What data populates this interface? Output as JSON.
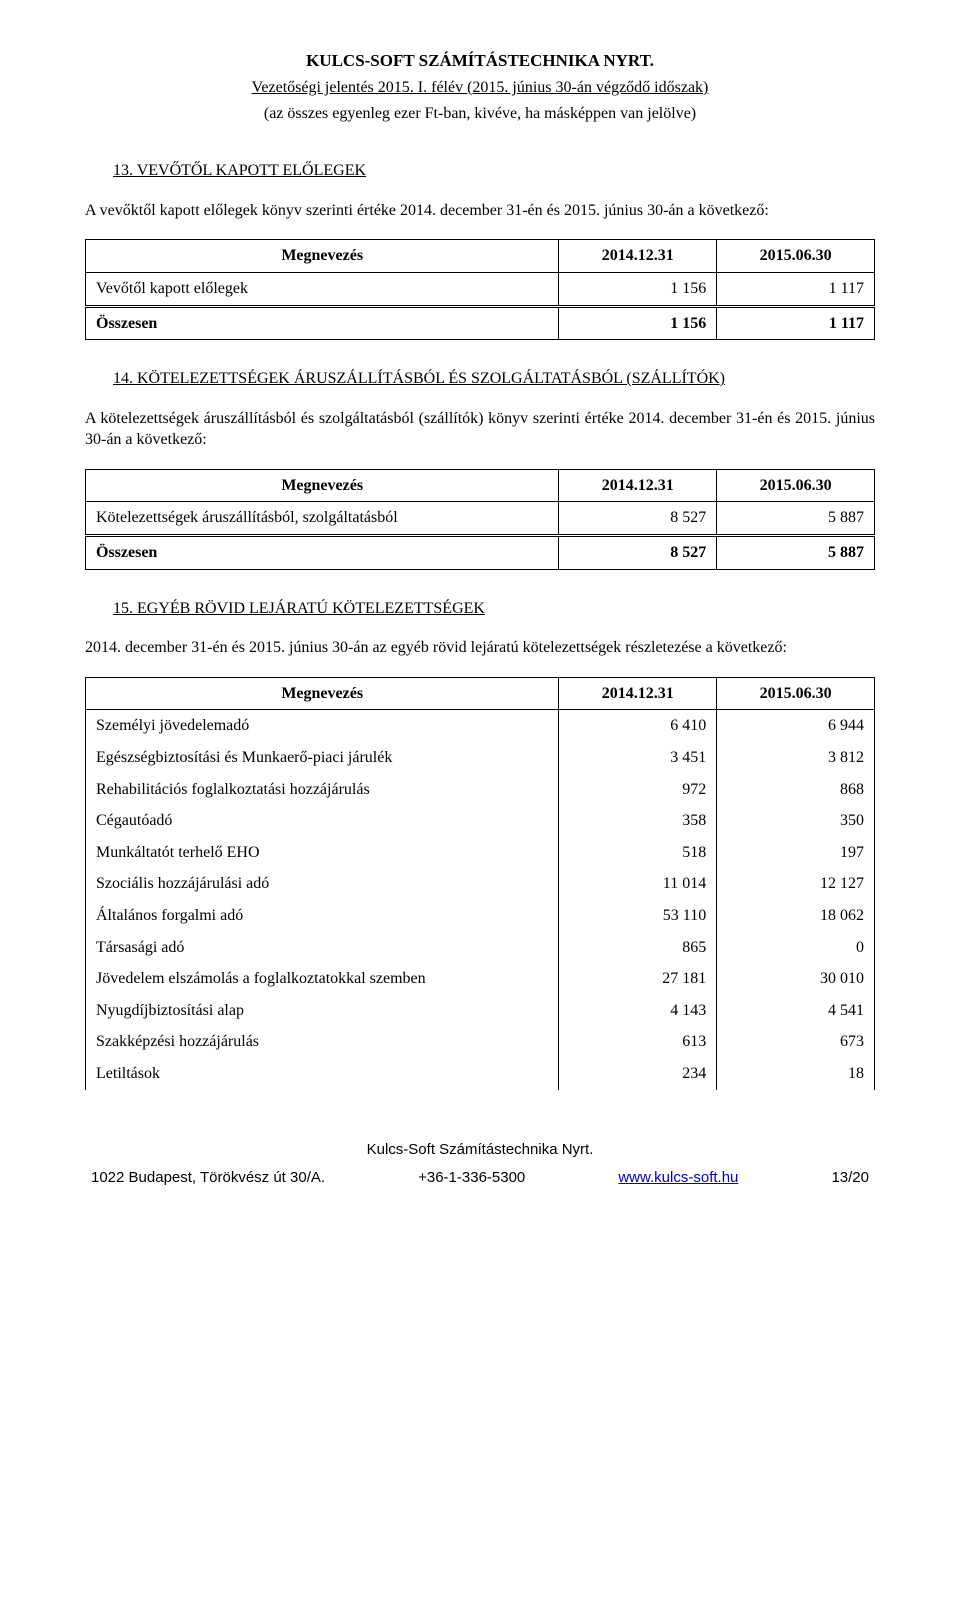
{
  "header": {
    "company": "KULCS-SOFT SZÁMÍTÁSTECHNIKA NYRT.",
    "subtitle": "Vezetőségi jelentés 2015. I. félév (2015. június 30-án végződő időszak)",
    "note": "(az összes egyenleg ezer Ft-ban, kivéve, ha másképpen van jelölve)"
  },
  "sections": {
    "s13": {
      "number": "13.",
      "title": "VEVŐTŐL KAPOTT ELŐLEGEK",
      "para": "A vevőktől kapott előlegek könyv szerinti értéke 2014. december 31-én és 2015. június 30-án a következő:",
      "table": {
        "headers": [
          "Megnevezés",
          "2014.12.31",
          "2015.06.30"
        ],
        "rows": [
          {
            "label": "Vevőtől kapott előlegek",
            "c1": "1 156",
            "c2": "1 117"
          }
        ],
        "total": {
          "label": "Összesen",
          "c1": "1 156",
          "c2": "1 117"
        }
      }
    },
    "s14": {
      "number": "14.",
      "title": "KÖTELEZETTSÉGEK ÁRUSZÁLLÍTÁSBÓL ÉS SZOLGÁLTATÁSBÓL (SZÁLLÍTÓK)",
      "para": "A kötelezettségek áruszállításból és szolgáltatásból (szállítók) könyv szerinti értéke 2014. december 31-én és 2015. június 30-án a következő:",
      "table": {
        "headers": [
          "Megnevezés",
          "2014.12.31",
          "2015.06.30"
        ],
        "rows": [
          {
            "label": "Kötelezettségek áruszállításból, szolgáltatásból",
            "c1": "8 527",
            "c2": "5 887"
          }
        ],
        "total": {
          "label": "Összesen",
          "c1": "8 527",
          "c2": "5 887"
        }
      }
    },
    "s15": {
      "number": "15.",
      "title": "EGYÉB RÖVID LEJÁRATÚ KÖTELEZETTSÉGEK",
      "para": "2014. december 31-én és 2015. június 30-án az egyéb rövid lejáratú kötelezettségek részletezése a következő:",
      "table": {
        "headers": [
          "Megnevezés",
          "2014.12.31",
          "2015.06.30"
        ],
        "rows": [
          {
            "label": "Személyi jövedelemadó",
            "c1": "6 410",
            "c2": "6 944"
          },
          {
            "label": "Egészségbiztosítási és Munkaerő-piaci járulék",
            "c1": "3 451",
            "c2": "3 812"
          },
          {
            "label": "Rehabilitációs foglalkoztatási hozzájárulás",
            "c1": "972",
            "c2": "868"
          },
          {
            "label": "Cégautóadó",
            "c1": "358",
            "c2": "350"
          },
          {
            "label": "Munkáltatót terhelő EHO",
            "c1": "518",
            "c2": "197"
          },
          {
            "label": "Szociális hozzájárulási adó",
            "c1": "11 014",
            "c2": "12 127"
          },
          {
            "label": "Általános forgalmi adó",
            "c1": "53 110",
            "c2": "18 062"
          },
          {
            "label": "Társasági adó",
            "c1": "865",
            "c2": "0"
          },
          {
            "label": "Jövedelem elszámolás a foglalkoztatokkal szemben",
            "c1": "27 181",
            "c2": "30 010"
          },
          {
            "label": "Nyugdíjbiztosítási alap",
            "c1": "4 143",
            "c2": "4 541"
          },
          {
            "label": "Szakképzési hozzájárulás",
            "c1": "613",
            "c2": "673"
          },
          {
            "label": "Letiltások",
            "c1": "234",
            "c2": "18"
          }
        ]
      }
    }
  },
  "footer": {
    "top": "Kulcs-Soft Számítástechnika Nyrt.",
    "address": "1022 Budapest, Törökvész út 30/A.",
    "phone": "+36-1-336-5300",
    "link": "www.kulcs-soft.hu",
    "page": "13/20"
  },
  "colors": {
    "text": "#000000",
    "background": "#ffffff",
    "link": "#0000cc",
    "border": "#000000"
  },
  "typography": {
    "body_family": "Times New Roman",
    "footer_family": "Arial",
    "body_size_pt": 12,
    "heading_underline": true
  },
  "col_widths": {
    "c0_pct": 60,
    "c1_pct": 20,
    "c2_pct": 20
  }
}
